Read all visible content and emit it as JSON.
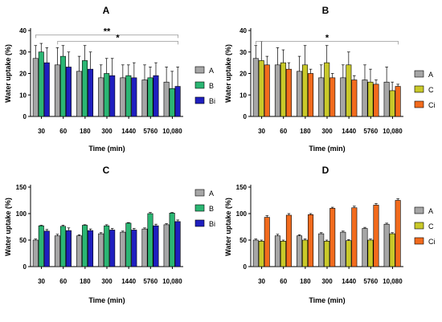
{
  "colors": {
    "A": "#a6a6a6",
    "B": "#2bb673",
    "Bi": "#1f1fbf",
    "C": "#c9c92a",
    "Ci": "#f26b1d"
  },
  "chart_data": [
    {
      "type": "bar",
      "title": "A",
      "xlabel": "Time (min)",
      "ylabel": "Water uptake (%)",
      "ylim": [
        0,
        40
      ],
      "yticks": [
        0,
        10,
        20,
        30,
        40
      ],
      "categories": [
        "30",
        "60",
        "180",
        "300",
        "1440",
        "5760",
        "10,080"
      ],
      "legend_position": "right",
      "series": [
        {
          "name": "A",
          "color": "#a6a6a6",
          "values": [
            27,
            24,
            21,
            18,
            18,
            17,
            16
          ],
          "errors": [
            6,
            8,
            7,
            6,
            6,
            7,
            7
          ]
        },
        {
          "name": "B",
          "color": "#2bb673",
          "values": [
            30,
            28,
            26,
            20,
            19,
            18,
            13
          ],
          "errors": [
            4,
            5,
            7,
            7,
            5,
            5,
            8
          ]
        },
        {
          "name": "Bi",
          "color": "#1f1fbf",
          "values": [
            25,
            23,
            22,
            19,
            18,
            19,
            14
          ],
          "errors": [
            7,
            7,
            8,
            8,
            7,
            6,
            9
          ]
        }
      ],
      "annotations": [
        {
          "text": "**",
          "from": 0,
          "to": 6,
          "level": 38
        },
        {
          "text": "*",
          "from": 1,
          "to": 6,
          "level": 35
        }
      ]
    },
    {
      "type": "bar",
      "title": "B",
      "xlabel": "Time (min)",
      "ylabel": "Water uptake (%)",
      "ylim": [
        0,
        40
      ],
      "yticks": [
        0,
        10,
        20,
        30,
        40
      ],
      "categories": [
        "30",
        "60",
        "180",
        "300",
        "1440",
        "5760",
        "10,080"
      ],
      "legend_position": "right",
      "series": [
        {
          "name": "A",
          "color": "#a6a6a6",
          "values": [
            27,
            24,
            21,
            18,
            18,
            17,
            16
          ],
          "errors": [
            6,
            8,
            7,
            6,
            6,
            7,
            7
          ]
        },
        {
          "name": "C",
          "color": "#c9c92a",
          "values": [
            26,
            25,
            24,
            25,
            24,
            16,
            12
          ],
          "errors": [
            9,
            6,
            9,
            8,
            6,
            6,
            4
          ]
        },
        {
          "name": "Ci",
          "color": "#f26b1d",
          "values": [
            24,
            22,
            20,
            18,
            17,
            15,
            14
          ],
          "errors": [
            4,
            3,
            2,
            2,
            2,
            2,
            1
          ]
        }
      ],
      "annotations": [
        {
          "text": "*",
          "from": 0,
          "to": 6,
          "level": 35
        }
      ]
    },
    {
      "type": "bar",
      "title": "C",
      "xlabel": "Time (min)",
      "ylabel": "Water uptake (%)",
      "ylim": [
        0,
        150
      ],
      "yticks": [
        0,
        50,
        100,
        150
      ],
      "categories": [
        "30",
        "60",
        "180",
        "300",
        "1440",
        "5760",
        "10,080"
      ],
      "legend_position": "right",
      "series": [
        {
          "name": "A",
          "color": "#a6a6a6",
          "values": [
            50,
            58,
            58,
            62,
            65,
            71,
            79
          ],
          "errors": [
            2,
            3,
            2,
            2,
            2,
            2,
            2
          ]
        },
        {
          "name": "B",
          "color": "#2bb673",
          "values": [
            77,
            76,
            78,
            77,
            82,
            100,
            101
          ],
          "errors": [
            1,
            2,
            1,
            2,
            1,
            2,
            1
          ]
        },
        {
          "name": "Bi",
          "color": "#1f1fbf",
          "values": [
            67,
            68,
            68,
            69,
            69,
            77,
            85
          ],
          "errors": [
            3,
            5,
            3,
            3,
            3,
            3,
            3
          ]
        }
      ],
      "annotations": []
    },
    {
      "type": "bar",
      "title": "D",
      "xlabel": "Time (min)",
      "ylabel": "Water uptake (%)",
      "ylim": [
        0,
        150
      ],
      "yticks": [
        0,
        50,
        100,
        150
      ],
      "categories": [
        "30",
        "60",
        "180",
        "300",
        "1440",
        "5760",
        "10,080"
      ],
      "legend_position": "right",
      "series": [
        {
          "name": "A",
          "color": "#a6a6a6",
          "values": [
            50,
            58,
            58,
            62,
            65,
            72,
            80
          ],
          "errors": [
            2,
            3,
            2,
            2,
            2,
            2,
            2
          ]
        },
        {
          "name": "C",
          "color": "#c9c92a",
          "values": [
            48,
            48,
            50,
            48,
            49,
            50,
            62
          ],
          "errors": [
            2,
            2,
            2,
            2,
            2,
            2,
            2
          ]
        },
        {
          "name": "Ci",
          "color": "#f26b1d",
          "values": [
            93,
            97,
            98,
            110,
            111,
            116,
            125
          ],
          "errors": [
            3,
            3,
            2,
            2,
            3,
            3,
            3
          ]
        }
      ],
      "annotations": []
    }
  ]
}
